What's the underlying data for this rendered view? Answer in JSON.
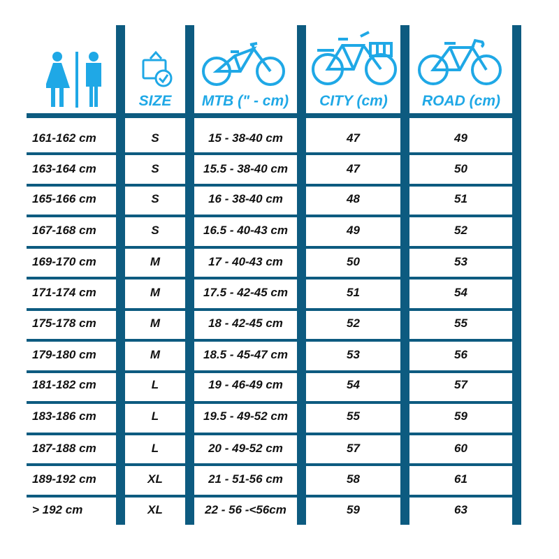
{
  "colors": {
    "grid": "#0d5b80",
    "accent": "#1fa8e6",
    "text": "#111111"
  },
  "icons": {
    "people": "male-female-person-icon",
    "size": "size-box-check-icon",
    "mtb": "mountain-bike-icon",
    "city": "city-bike-basket-icon",
    "road": "road-bike-icon"
  },
  "chart_data": {
    "type": "table",
    "columns": [
      "",
      "SIZE",
      "MTB (\" - cm)",
      "CITY (cm)",
      "ROAD (cm)"
    ],
    "rows": [
      [
        "161-162 cm",
        "S",
        "15 - 38-40 cm",
        "47",
        "49"
      ],
      [
        "163-164 cm",
        "S",
        "15.5 - 38-40 cm",
        "47",
        "50"
      ],
      [
        "165-166 cm",
        "S",
        "16 - 38-40 cm",
        "48",
        "51"
      ],
      [
        "167-168 cm",
        "S",
        "16.5 - 40-43 cm",
        "49",
        "52"
      ],
      [
        "169-170 cm",
        "M",
        "17 - 40-43 cm",
        "50",
        "53"
      ],
      [
        "171-174 cm",
        "M",
        "17.5 - 42-45 cm",
        "51",
        "54"
      ],
      [
        "175-178 cm",
        "M",
        "18 - 42-45 cm",
        "52",
        "55"
      ],
      [
        "179-180 cm",
        "M",
        "18.5 - 45-47 cm",
        "53",
        "56"
      ],
      [
        "181-182 cm",
        "L",
        "19 - 46-49 cm",
        "54",
        "57"
      ],
      [
        "183-186 cm",
        "L",
        "19.5 - 49-52 cm",
        "55",
        "59"
      ],
      [
        "187-188 cm",
        "L",
        "20 - 49-52 cm",
        "57",
        "60"
      ],
      [
        "189-192 cm",
        "XL",
        "21 - 51-56 cm",
        "58",
        "61"
      ],
      [
        "> 192 cm",
        "XL",
        "22 - 56 -<56cm",
        "59",
        "63"
      ]
    ]
  }
}
